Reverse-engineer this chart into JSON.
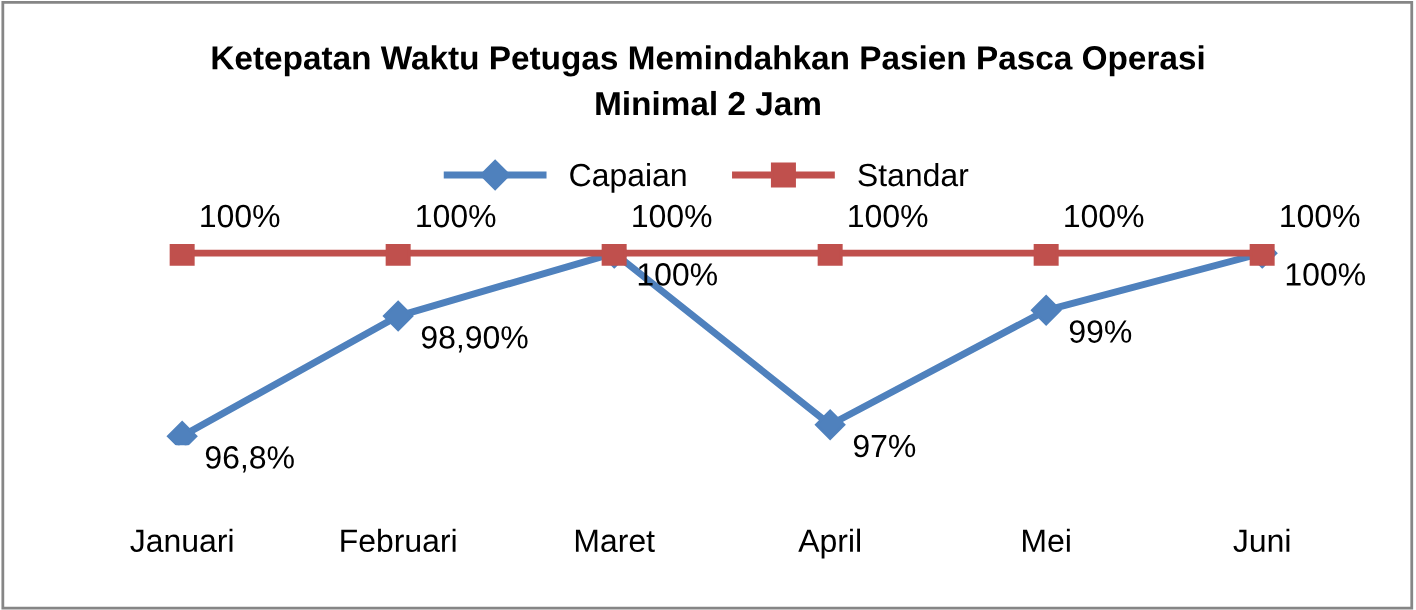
{
  "chart_data": {
    "type": "line",
    "title": "Ketepatan Waktu Petugas Memindahkan Pasien Pasca Operasi\nMinimal 2 Jam",
    "categories": [
      "Januari",
      "Februari",
      "Maret",
      "April",
      "Mei",
      "Juni"
    ],
    "series": [
      {
        "name": "Capaian",
        "color": "#4f81bd",
        "marker": "diamond",
        "values": [
          96.8,
          98.9,
          100,
          97,
          99,
          100
        ],
        "value_labels": [
          "96,8%",
          "98,90%",
          "100%",
          "97%",
          "99%",
          "100%"
        ]
      },
      {
        "name": "Standar",
        "color": "#c0504d",
        "marker": "square",
        "values": [
          100,
          100,
          100,
          100,
          100,
          100
        ],
        "value_labels": [
          "100%",
          "100%",
          "100%",
          "100%",
          "100%",
          "100%"
        ]
      }
    ],
    "legend": "top",
    "grid": false,
    "tick_labels": "x"
  }
}
